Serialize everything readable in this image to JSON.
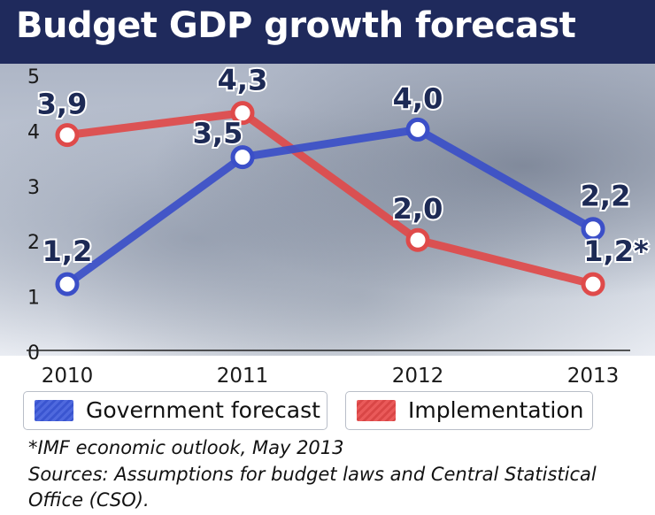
{
  "chart_data": {
    "type": "line",
    "title": "Budget GDP growth forecast",
    "categories": [
      "2010",
      "2011",
      "2012",
      "2013"
    ],
    "ylim": [
      0,
      5
    ],
    "yticks": [
      "0",
      "1",
      "2",
      "3",
      "4",
      "5"
    ],
    "grid": false,
    "series": [
      {
        "name": "Government forecast",
        "values": [
          1.2,
          3.5,
          4.0,
          2.2
        ],
        "labels": [
          "1,2",
          "3,5",
          "4,0",
          "2,2"
        ],
        "color": "#3b4fc8"
      },
      {
        "name": "Implementation",
        "values": [
          3.9,
          4.3,
          2.0,
          1.2
        ],
        "labels": [
          "3,9",
          "4,3",
          "2,0",
          "1,2*"
        ],
        "color": "#df4a4a"
      }
    ]
  },
  "legend": {
    "items": [
      "Government forecast",
      "Implementation"
    ]
  },
  "footnotes": {
    "note": "*IMF economic outlook, May 2013",
    "sources_line1": "Sources: Assumptions for budget laws and Central Statistical",
    "sources_line2": "Office (CSO)."
  },
  "colors": {
    "header_bg": "#1f2a5c",
    "gov_line": "#3b4fc8",
    "impl_line": "#df4a4a",
    "label_text": "#1d2a55"
  }
}
